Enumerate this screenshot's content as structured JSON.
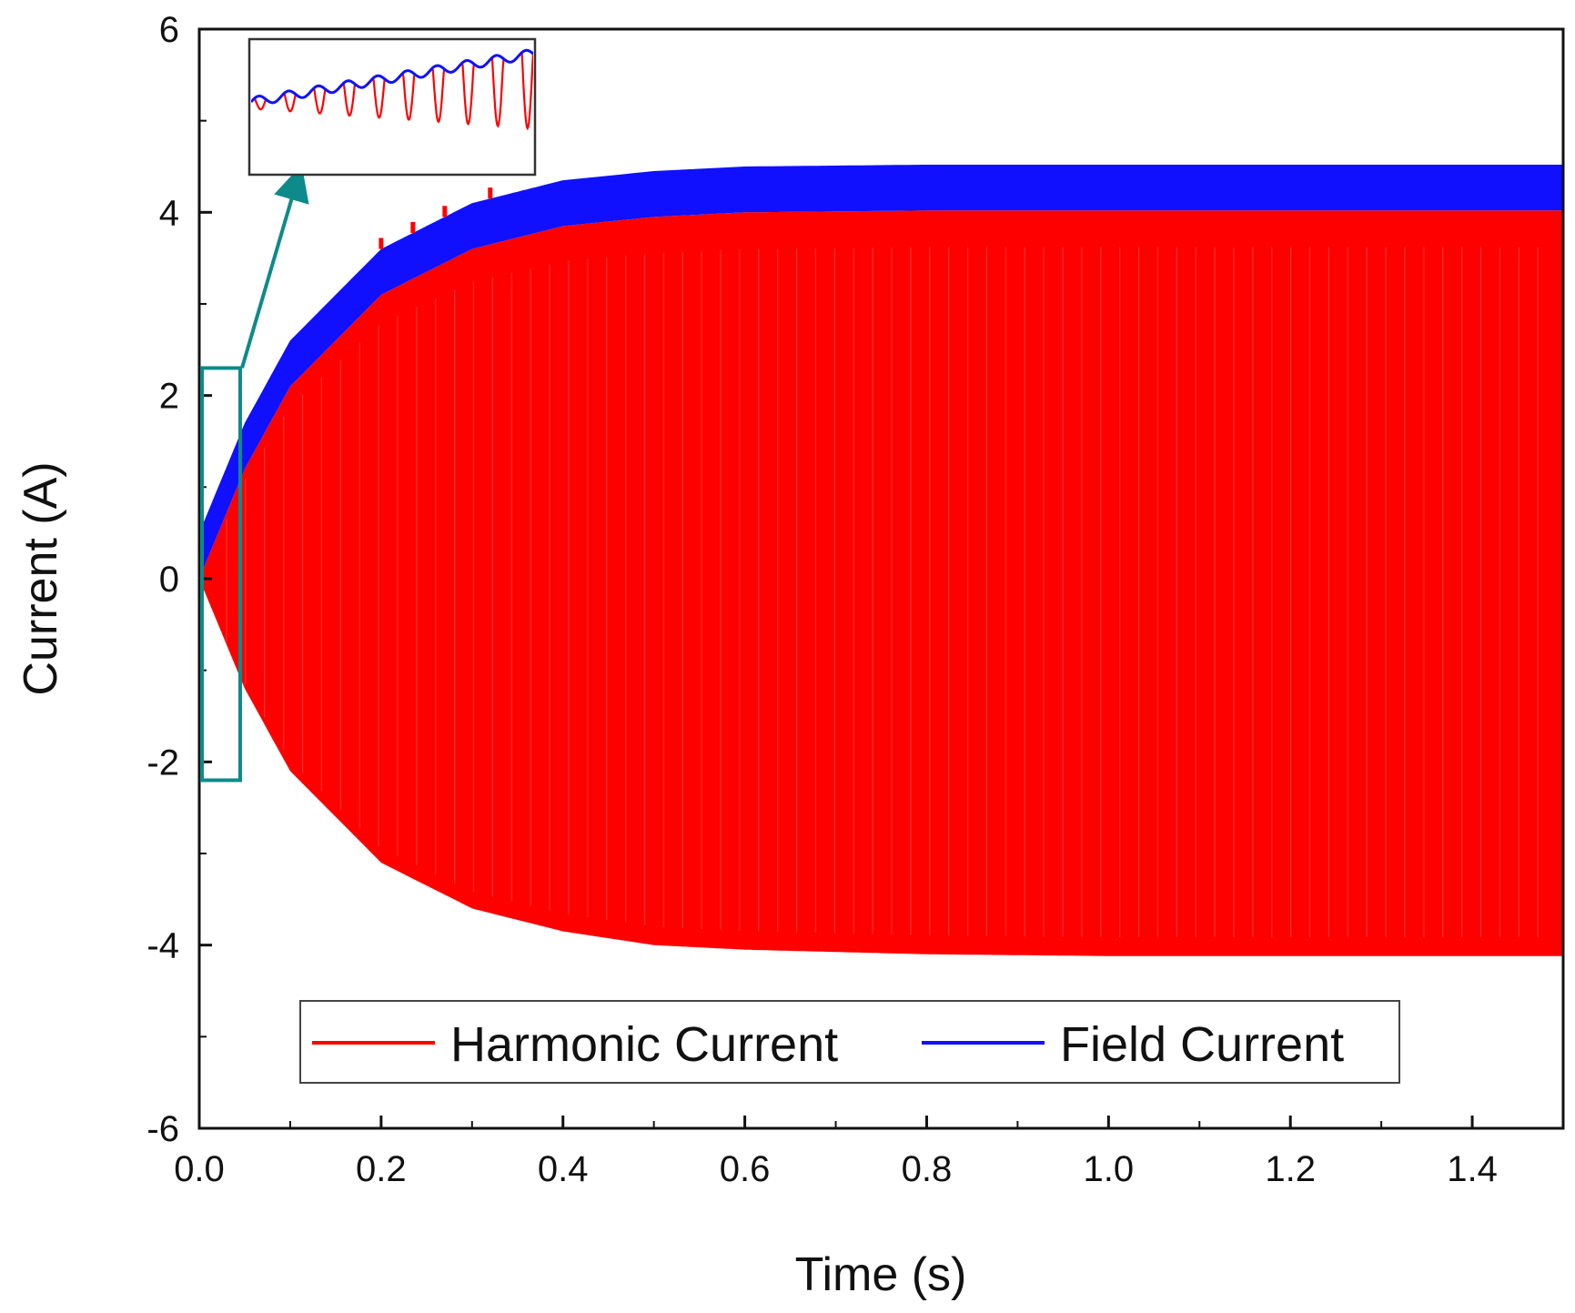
{
  "chart_data": {
    "type": "line",
    "title": "",
    "xlabel": "Time (s)",
    "ylabel": "Current (A)",
    "xlim": [
      0,
      1.5
    ],
    "ylim": [
      -6,
      6
    ],
    "x_ticks": [
      0.0,
      0.2,
      0.4,
      0.6,
      0.8,
      1.0,
      1.2,
      1.4
    ],
    "x_tick_labels": [
      "0.0",
      "0.2",
      "0.4",
      "0.6",
      "0.8",
      "1.0",
      "1.2",
      "1.4"
    ],
    "y_ticks": [
      -6,
      -4,
      -2,
      0,
      2,
      4,
      6
    ],
    "y_tick_labels": [
      "-6",
      "-4",
      "-2",
      "0",
      "2",
      "4",
      "6"
    ],
    "grid": false,
    "legend_position": "bottom-center",
    "series": [
      {
        "name": "Harmonic Current",
        "color": "#ff0000",
        "description_values": {
          "x": [
            0.0,
            0.05,
            0.1,
            0.2,
            0.3,
            0.4,
            0.5,
            0.6,
            0.8,
            1.0,
            1.2,
            1.5
          ],
          "upper_envelope": [
            0.0,
            1.2,
            2.1,
            3.1,
            3.6,
            3.85,
            3.95,
            4.0,
            4.02,
            4.02,
            4.02,
            4.02
          ],
          "lower_envelope": [
            0.0,
            -1.2,
            -2.1,
            -3.1,
            -3.6,
            -3.85,
            -4.0,
            -4.05,
            -4.1,
            -4.12,
            -4.12,
            -4.12
          ]
        }
      },
      {
        "name": "Field Current",
        "color": "#1010ff",
        "description_values": {
          "x": [
            0.0,
            0.05,
            0.1,
            0.2,
            0.3,
            0.4,
            0.5,
            0.6,
            0.8,
            1.0,
            1.2,
            1.5
          ],
          "upper_envelope": [
            0.5,
            1.7,
            2.6,
            3.6,
            4.1,
            4.35,
            4.45,
            4.5,
            4.52,
            4.52,
            4.52,
            4.52
          ],
          "lower_envelope": [
            0.0,
            1.2,
            2.1,
            3.1,
            3.6,
            3.85,
            3.95,
            4.0,
            4.02,
            4.02,
            4.02,
            4.02
          ]
        }
      }
    ],
    "annotations": [
      {
        "type": "zoom-box",
        "x_range": [
          0.0,
          0.045
        ],
        "y_range": [
          -2.2,
          2.3
        ],
        "color": "#0e8a8a"
      },
      {
        "type": "inset",
        "description": "zoomed view of early transient"
      }
    ]
  },
  "colors": {
    "harmonic": "#ff0000",
    "field": "#1010ff",
    "annotation": "#0e8a8a",
    "axis": "#111111"
  }
}
